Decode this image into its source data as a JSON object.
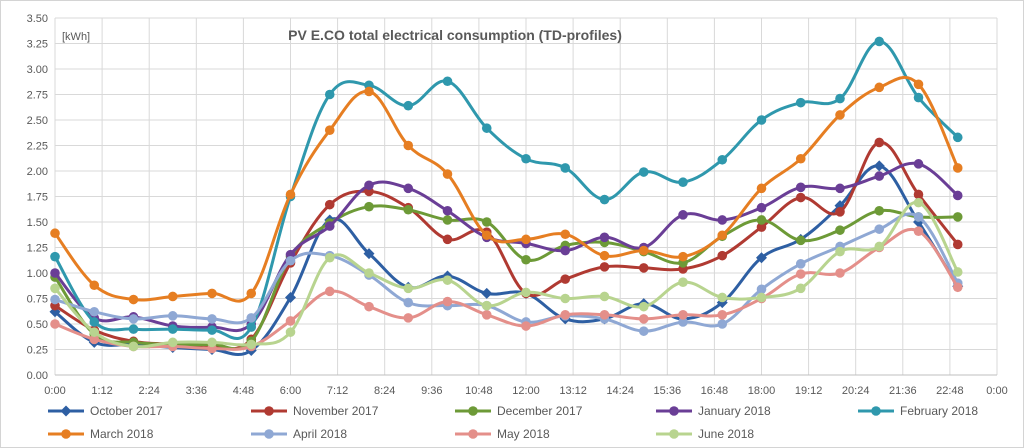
{
  "chart_data": {
    "type": "line",
    "title": "PV E.CO total electrical consumption (TD-profiles)",
    "unit_label": "[kWh]",
    "xlabel": "",
    "ylabel": "kWh",
    "ylim": [
      0,
      3.5
    ],
    "yticks": [
      0,
      0.25,
      0.5,
      0.75,
      1.0,
      1.25,
      1.5,
      1.75,
      2.0,
      2.25,
      2.5,
      2.75,
      3.0,
      3.25,
      3.5
    ],
    "ytick_labels": [
      "0.00",
      "0.25",
      "0.50",
      "0.75",
      "1.00",
      "1.25",
      "1.50",
      "1.75",
      "2.00",
      "2.25",
      "2.50",
      "2.75",
      "3.00",
      "3.25",
      "3.50"
    ],
    "xlim": [
      0,
      24
    ],
    "xticks": [
      0,
      1.2,
      2.4,
      3.6,
      4.8,
      6,
      7.2,
      8.4,
      9.6,
      10.8,
      12,
      13.2,
      14.4,
      15.6,
      16.8,
      18,
      19.2,
      20.4,
      21.6,
      22.8,
      24
    ],
    "xtick_labels": [
      "0:00",
      "1:12",
      "2:24",
      "3:36",
      "4:48",
      "6:00",
      "7:12",
      "8:24",
      "9:36",
      "10:48",
      "12:00",
      "13:12",
      "14:24",
      "15:36",
      "16:48",
      "18:00",
      "19:12",
      "20:24",
      "21:36",
      "22:48",
      "0:00"
    ],
    "grid": true,
    "legend_position": "bottom",
    "x": [
      0,
      1,
      2,
      3,
      4,
      5,
      6,
      7,
      8,
      9,
      10,
      11,
      12,
      13,
      14,
      15,
      16,
      17,
      18,
      19,
      20,
      21,
      22,
      23
    ],
    "series": [
      {
        "name": "October 2017",
        "color": "#2e5fa3",
        "marker": "diamond",
        "values": [
          0.62,
          0.32,
          0.3,
          0.27,
          0.25,
          0.24,
          0.76,
          1.52,
          1.19,
          0.86,
          0.97,
          0.8,
          0.8,
          0.55,
          0.55,
          0.7,
          0.55,
          0.71,
          1.15,
          1.33,
          1.66,
          2.05,
          1.5,
          0.87
        ]
      },
      {
        "name": "November 2017",
        "color": "#b03a32",
        "marker": "circle",
        "values": [
          0.68,
          0.44,
          0.33,
          0.3,
          0.27,
          0.35,
          1.1,
          1.67,
          1.8,
          1.64,
          1.33,
          1.4,
          0.8,
          0.94,
          1.06,
          1.05,
          1.04,
          1.17,
          1.45,
          1.74,
          1.6,
          2.28,
          1.77,
          1.28
        ]
      },
      {
        "name": "December 2017",
        "color": "#6d9a37",
        "marker": "circle",
        "values": [
          0.96,
          0.4,
          0.32,
          0.3,
          0.3,
          0.33,
          1.16,
          1.49,
          1.65,
          1.62,
          1.52,
          1.5,
          1.13,
          1.27,
          1.3,
          1.21,
          1.1,
          1.36,
          1.52,
          1.32,
          1.42,
          1.61,
          1.55,
          1.55
        ]
      },
      {
        "name": "January 2018",
        "color": "#6a3e96",
        "marker": "circle",
        "values": [
          1.0,
          0.56,
          0.57,
          0.48,
          0.47,
          0.5,
          1.18,
          1.46,
          1.86,
          1.83,
          1.61,
          1.35,
          1.29,
          1.22,
          1.35,
          1.25,
          1.57,
          1.52,
          1.64,
          1.84,
          1.83,
          1.95,
          2.07,
          1.76
        ]
      },
      {
        "name": "February 2018",
        "color": "#2f98ad",
        "marker": "circle",
        "values": [
          1.16,
          0.52,
          0.45,
          0.45,
          0.44,
          0.47,
          1.75,
          2.75,
          2.84,
          2.64,
          2.88,
          2.42,
          2.12,
          2.03,
          1.72,
          1.99,
          1.89,
          2.11,
          2.5,
          2.67,
          2.71,
          3.27,
          2.72,
          2.33
        ]
      },
      {
        "name": "March 2018",
        "color": "#e67e22",
        "marker": "circle",
        "values": [
          1.39,
          0.88,
          0.74,
          0.77,
          0.8,
          0.8,
          1.77,
          2.4,
          2.78,
          2.25,
          1.97,
          1.37,
          1.33,
          1.38,
          1.17,
          1.22,
          1.16,
          1.37,
          1.83,
          2.12,
          2.55,
          2.82,
          2.85,
          2.03
        ]
      },
      {
        "name": "April 2018",
        "color": "#8fa8d4",
        "marker": "circle",
        "values": [
          0.74,
          0.62,
          0.55,
          0.58,
          0.55,
          0.56,
          1.12,
          1.17,
          0.98,
          0.71,
          0.68,
          0.68,
          0.52,
          0.58,
          0.55,
          0.43,
          0.52,
          0.5,
          0.84,
          1.09,
          1.26,
          1.43,
          1.55,
          0.9
        ]
      },
      {
        "name": "May 2018",
        "color": "#e48f8a",
        "marker": "circle",
        "values": [
          0.5,
          0.35,
          0.28,
          0.28,
          0.26,
          0.28,
          0.53,
          0.82,
          0.67,
          0.56,
          0.72,
          0.59,
          0.48,
          0.59,
          0.59,
          0.55,
          0.59,
          0.59,
          0.75,
          0.99,
          1.0,
          1.25,
          1.41,
          0.86
        ]
      },
      {
        "name": "June 2018",
        "color": "#b8d48f",
        "marker": "circle",
        "values": [
          0.85,
          0.42,
          0.28,
          0.32,
          0.32,
          0.3,
          0.42,
          1.15,
          1.0,
          0.85,
          0.93,
          0.68,
          0.81,
          0.75,
          0.77,
          0.67,
          0.91,
          0.76,
          0.76,
          0.85,
          1.21,
          1.26,
          1.69,
          1.01
        ]
      }
    ]
  }
}
